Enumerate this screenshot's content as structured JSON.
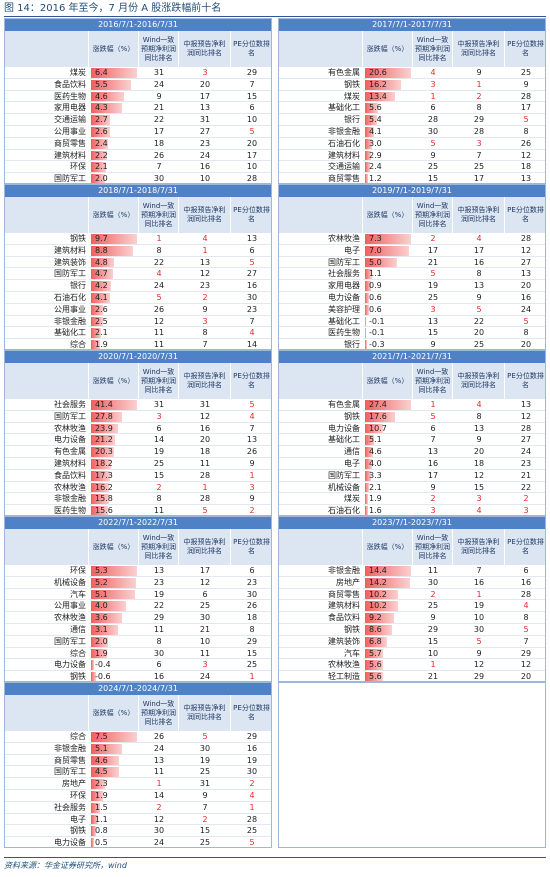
{
  "title": "图 14：2016 年至今，7 月份 A 股涨跌幅前十名",
  "headers": {
    "change": "涨跌幅（%）",
    "wind": "Wind一致预期净利润同比排名",
    "interim": "中报预告净利润同比排名",
    "pe": "PE分位数排名"
  },
  "panels": [
    {
      "period": "2016/7/1-2016/7/31",
      "rows": [
        [
          "煤炭",
          6.4,
          31,
          3,
          29
        ],
        [
          "食品饮料",
          5.5,
          24,
          20,
          7
        ],
        [
          "医药生物",
          4.6,
          9,
          17,
          15
        ],
        [
          "家用电器",
          4.3,
          21,
          13,
          6
        ],
        [
          "交通运输",
          2.7,
          22,
          31,
          10
        ],
        [
          "公用事业",
          2.6,
          17,
          27,
          5
        ],
        [
          "商贸零售",
          2.4,
          18,
          23,
          20
        ],
        [
          "建筑材料",
          2.2,
          26,
          24,
          17
        ],
        [
          "环保",
          2.1,
          7,
          16,
          10
        ],
        [
          "国防军工",
          {
            "value": 2,
            "label": "2.0"
          },
          30,
          10,
          28
        ]
      ]
    },
    {
      "period": "2017/7/1-2017/7/31",
      "rows": [
        [
          "有色金属",
          20.6,
          4,
          9,
          25
        ],
        [
          "钢铁",
          16.2,
          3,
          1,
          9
        ],
        [
          "煤炭",
          13.4,
          1,
          2,
          28
        ],
        [
          "基础化工",
          5.6,
          6,
          8,
          17
        ],
        [
          "银行",
          5.4,
          28,
          29,
          5
        ],
        [
          "非银金融",
          4.1,
          30,
          28,
          8
        ],
        [
          "石油石化",
          {
            "value": 3,
            "label": "3.0"
          },
          5,
          3,
          26
        ],
        [
          "建筑材料",
          2.9,
          9,
          7,
          12
        ],
        [
          "交通运输",
          2.4,
          25,
          25,
          18
        ],
        [
          "商贸零售",
          1.2,
          15,
          17,
          13
        ]
      ]
    },
    {
      "period": "2018/7/1-2018/7/31",
      "rows": [
        [
          "钢铁",
          9.7,
          1,
          4,
          13
        ],
        [
          "建筑材料",
          8.8,
          8,
          1,
          6
        ],
        [
          "建筑装饰",
          4.8,
          22,
          13,
          5
        ],
        [
          "国防军工",
          4.7,
          4,
          12,
          27
        ],
        [
          "银行",
          4.2,
          24,
          23,
          16
        ],
        [
          "石油石化",
          4.1,
          5,
          2,
          30
        ],
        [
          "公用事业",
          2.6,
          26,
          9,
          23
        ],
        [
          "非银金融",
          2.5,
          12,
          3,
          7
        ],
        [
          "基础化工",
          2.1,
          11,
          8,
          4
        ],
        [
          "综合",
          1.9,
          11,
          7,
          14
        ]
      ]
    },
    {
      "period": "2019/7/1-2019/7/31",
      "rows": [
        [
          "农林牧渔",
          7.3,
          2,
          4,
          28
        ],
        [
          "电子",
          {
            "value": 7,
            "label": "7.0"
          },
          17,
          17,
          12
        ],
        [
          "国防军工",
          {
            "value": 5,
            "label": "5.0"
          },
          21,
          16,
          27
        ],
        [
          "社会服务",
          1.1,
          5,
          8,
          13
        ],
        [
          "家用电器",
          0.9,
          19,
          13,
          20
        ],
        [
          "电力设备",
          0.6,
          25,
          9,
          16
        ],
        [
          "美容护理",
          0.6,
          3,
          5,
          24
        ],
        [
          "基础化工",
          -0.1,
          13,
          22,
          5
        ],
        [
          "医药生物",
          -0.1,
          15,
          20,
          8
        ],
        [
          "银行",
          -0.3,
          9,
          25,
          20
        ]
      ]
    },
    {
      "period": "2020/7/1-2020/7/31",
      "rows": [
        [
          "社会服务",
          41.4,
          31,
          31,
          5
        ],
        [
          "国防军工",
          27.8,
          3,
          12,
          4
        ],
        [
          "农林牧渔",
          23.9,
          6,
          16,
          7
        ],
        [
          "电力设备",
          21.2,
          14,
          20,
          13
        ],
        [
          "有色金属",
          20.3,
          19,
          18,
          26
        ],
        [
          "建筑材料",
          18.2,
          25,
          11,
          9
        ],
        [
          "食品饮料",
          17.3,
          15,
          28,
          1
        ],
        [
          "农林牧渔",
          16.2,
          2,
          1,
          3
        ],
        [
          "非银金融",
          15.8,
          8,
          28,
          9
        ],
        [
          "医药生物",
          15.6,
          11,
          5,
          2
        ]
      ]
    },
    {
      "period": "2021/7/1-2021/7/31",
      "rows": [
        [
          "有色金属",
          27.4,
          1,
          4,
          13
        ],
        [
          "钢铁",
          17.6,
          5,
          8,
          12
        ],
        [
          "电力设备",
          10.7,
          6,
          13,
          28
        ],
        [
          "基础化工",
          5.1,
          7,
          9,
          27
        ],
        [
          "通信",
          4.6,
          13,
          20,
          24
        ],
        [
          "电子",
          {
            "value": 4,
            "label": "4.0"
          },
          16,
          18,
          23
        ],
        [
          "国防军工",
          3.3,
          17,
          12,
          21
        ],
        [
          "机械设备",
          2.1,
          9,
          15,
          22
        ],
        [
          "煤炭",
          1.9,
          2,
          3,
          2
        ],
        [
          "石油石化",
          1.6,
          3,
          4,
          3
        ]
      ]
    },
    {
      "period": "2022/7/1-2022/7/31",
      "rows": [
        [
          "环保",
          5.3,
          13,
          17,
          6
        ],
        [
          "机械设备",
          5.2,
          23,
          12,
          23
        ],
        [
          "汽车",
          5.1,
          19,
          6,
          30
        ],
        [
          "公用事业",
          {
            "value": 4,
            "label": "4.0"
          },
          22,
          25,
          26
        ],
        [
          "农林牧渔",
          3.6,
          29,
          30,
          18
        ],
        [
          "通信",
          3.1,
          11,
          21,
          8
        ],
        [
          "国防军工",
          {
            "value": 2,
            "label": "2.0"
          },
          8,
          10,
          29
        ],
        [
          "综合",
          1.9,
          30,
          11,
          15
        ],
        [
          "电力设备",
          -0.4,
          6,
          3,
          25
        ],
        [
          "钢铁",
          -0.6,
          16,
          24,
          1
        ]
      ]
    },
    {
      "period": "2023/7/1-2023/7/31",
      "rows": [
        [
          "非银金融",
          14.4,
          11,
          7,
          6
        ],
        [
          "房地产",
          14.2,
          30,
          16,
          16
        ],
        [
          "商贸零售",
          10.2,
          2,
          1,
          28
        ],
        [
          "建筑材料",
          10.2,
          25,
          19,
          4
        ],
        [
          "食品饮料",
          9.2,
          9,
          10,
          8
        ],
        [
          "钢铁",
          8.6,
          29,
          30,
          5
        ],
        [
          "建筑装饰",
          6.8,
          15,
          5,
          7
        ],
        [
          "汽车",
          5.7,
          10,
          9,
          29
        ],
        [
          "农林牧渔",
          5.6,
          1,
          12,
          12
        ],
        [
          "轻工制造",
          5.6,
          21,
          29,
          20
        ]
      ]
    },
    {
      "period": "2024/7/1-2024/7/31",
      "rows": [
        [
          "综合",
          7.5,
          26,
          5,
          29
        ],
        [
          "非银金融",
          5.1,
          24,
          30,
          16
        ],
        [
          "商贸零售",
          4.6,
          13,
          19,
          19
        ],
        [
          "国防军工",
          4.5,
          11,
          25,
          30
        ],
        [
          "房地产",
          2.3,
          1,
          31,
          2
        ],
        [
          "环保",
          1.9,
          14,
          9,
          4
        ],
        [
          "社会服务",
          1.5,
          2,
          7,
          1
        ],
        [
          "电子",
          1.1,
          12,
          2,
          28
        ],
        [
          "钢铁",
          0.8,
          30,
          15,
          25
        ],
        [
          "电力设备",
          0.5,
          24,
          25,
          5
        ]
      ]
    }
  ],
  "source": "资料来源：华金证券研究所，wind"
}
